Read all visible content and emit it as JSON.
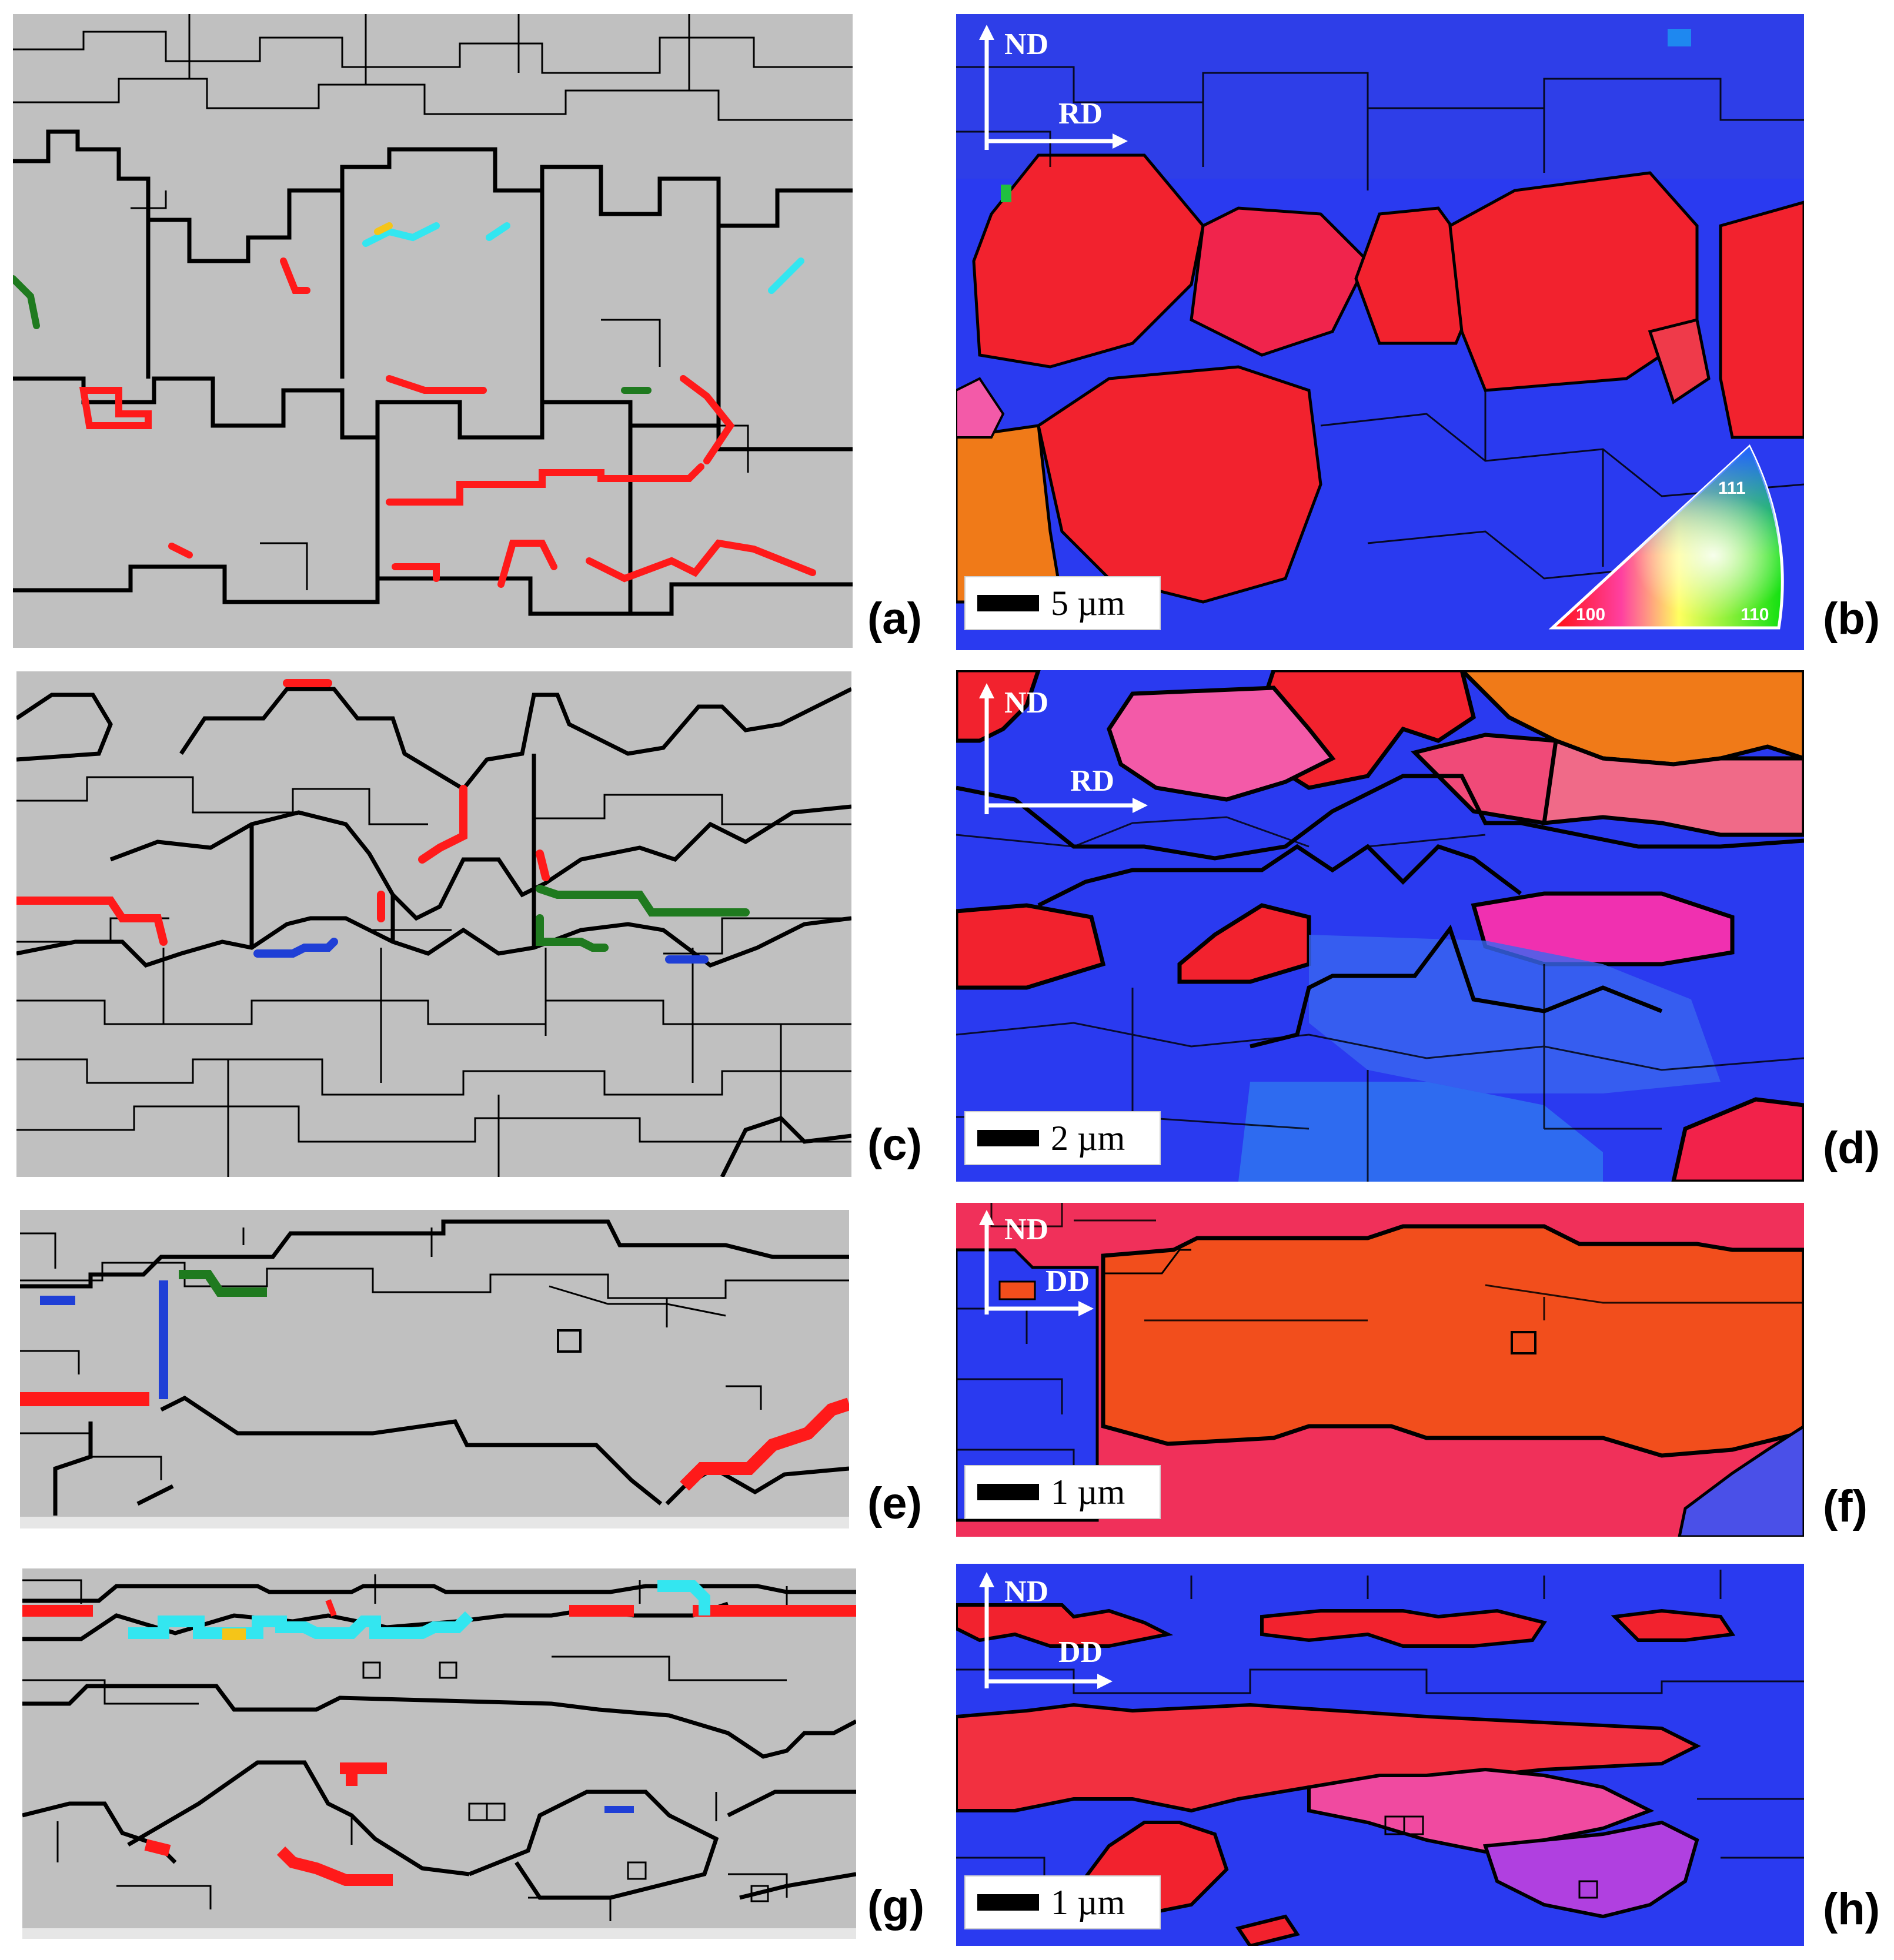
{
  "panel_labels": {
    "a": "(a)",
    "b": "(b)",
    "c": "(c)",
    "d": "(d)",
    "e": "(e)",
    "f": "(f)",
    "g": "(g)",
    "h": "(h)"
  },
  "axes": {
    "b": {
      "vertical": "ND",
      "horizontal": "RD"
    },
    "d": {
      "vertical": "ND",
      "horizontal": "RD"
    },
    "f": {
      "vertical": "ND",
      "horizontal": "DD"
    },
    "h": {
      "vertical": "ND",
      "horizontal": "DD"
    }
  },
  "scale_bars": {
    "b": "5 µm",
    "d": "2 µm",
    "f": "1 µm",
    "h": "1 µm"
  },
  "ipf_key": {
    "corner_100": "100",
    "corner_110": "110",
    "corner_111": "111"
  },
  "colors": {
    "background_gray": "#c0c0c0",
    "boundary": "#000000",
    "boundary_red": "#ff1a1a",
    "boundary_green": "#1f7a1f",
    "boundary_blue": "#1f3fd6",
    "boundary_cyan": "#33e6f0",
    "boundary_yellow": "#f5c518",
    "ipf_red": "#f2222e",
    "ipf_blue": "#2a3af0",
    "ipf_orange": "#f07a18",
    "ipf_pink": "#f35aa8",
    "ipf_magenta": "#c040e0"
  }
}
